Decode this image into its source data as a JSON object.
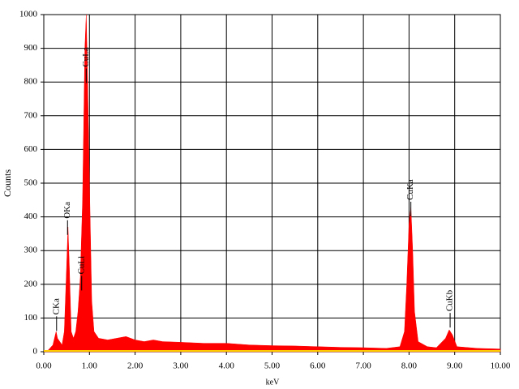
{
  "chart_data": {
    "type": "area",
    "x_label": "keV",
    "y_label": "Counts",
    "xlim": [
      0,
      10
    ],
    "ylim": [
      0,
      1000
    ],
    "xticks": [
      {
        "value": 0,
        "label": "0.00"
      },
      {
        "value": 1,
        "label": "1.00"
      },
      {
        "value": 2,
        "label": "2.00"
      },
      {
        "value": 3,
        "label": "3.00"
      },
      {
        "value": 4,
        "label": "4.00"
      },
      {
        "value": 5,
        "label": "5.00"
      },
      {
        "value": 6,
        "label": "6.00"
      },
      {
        "value": 7,
        "label": "7.00"
      },
      {
        "value": 8,
        "label": "8.00"
      },
      {
        "value": 9,
        "label": "9.00"
      },
      {
        "value": 10,
        "label": "10.00"
      }
    ],
    "yticks": [
      0,
      100,
      200,
      300,
      400,
      500,
      600,
      700,
      800,
      900,
      1000
    ],
    "grid": true,
    "baseline_color": "#ffcc00",
    "series": [
      {
        "color": "#ff0000",
        "x": [
          0,
          0.1,
          0.2,
          0.27,
          0.3,
          0.4,
          0.45,
          0.5,
          0.53,
          0.56,
          0.6,
          0.65,
          0.7,
          0.75,
          0.8,
          0.85,
          0.9,
          0.93,
          0.96,
          1.0,
          1.05,
          1.1,
          1.2,
          1.4,
          1.6,
          1.8,
          2.0,
          2.2,
          2.4,
          2.6,
          3.0,
          3.5,
          4.0,
          4.5,
          5.0,
          5.5,
          6.0,
          6.5,
          7.0,
          7.5,
          7.8,
          7.9,
          7.95,
          8.0,
          8.04,
          8.08,
          8.12,
          8.2,
          8.4,
          8.6,
          8.8,
          8.88,
          8.95,
          9.05,
          9.5,
          10.0
        ],
        "values": [
          0,
          5,
          20,
          60,
          40,
          20,
          60,
          250,
          370,
          250,
          60,
          40,
          60,
          120,
          220,
          450,
          900,
          1000,
          800,
          500,
          150,
          60,
          40,
          35,
          40,
          45,
          35,
          30,
          35,
          30,
          28,
          25,
          25,
          20,
          18,
          17,
          15,
          13,
          12,
          10,
          15,
          60,
          200,
          380,
          430,
          300,
          120,
          30,
          15,
          12,
          40,
          65,
          50,
          15,
          10,
          8
        ]
      }
    ],
    "annotations": [
      {
        "text": "CKa",
        "x": 0.28,
        "y": 105
      },
      {
        "text": "OKa",
        "x": 0.52,
        "y": 390
      },
      {
        "text": "CuLl",
        "x": 0.83,
        "y": 225
      },
      {
        "text": "CuLa",
        "x": 0.93,
        "y": 840
      },
      {
        "text": "CuKa",
        "x": 8.04,
        "y": 445
      },
      {
        "text": "CuKb",
        "x": 8.9,
        "y": 115
      }
    ]
  }
}
